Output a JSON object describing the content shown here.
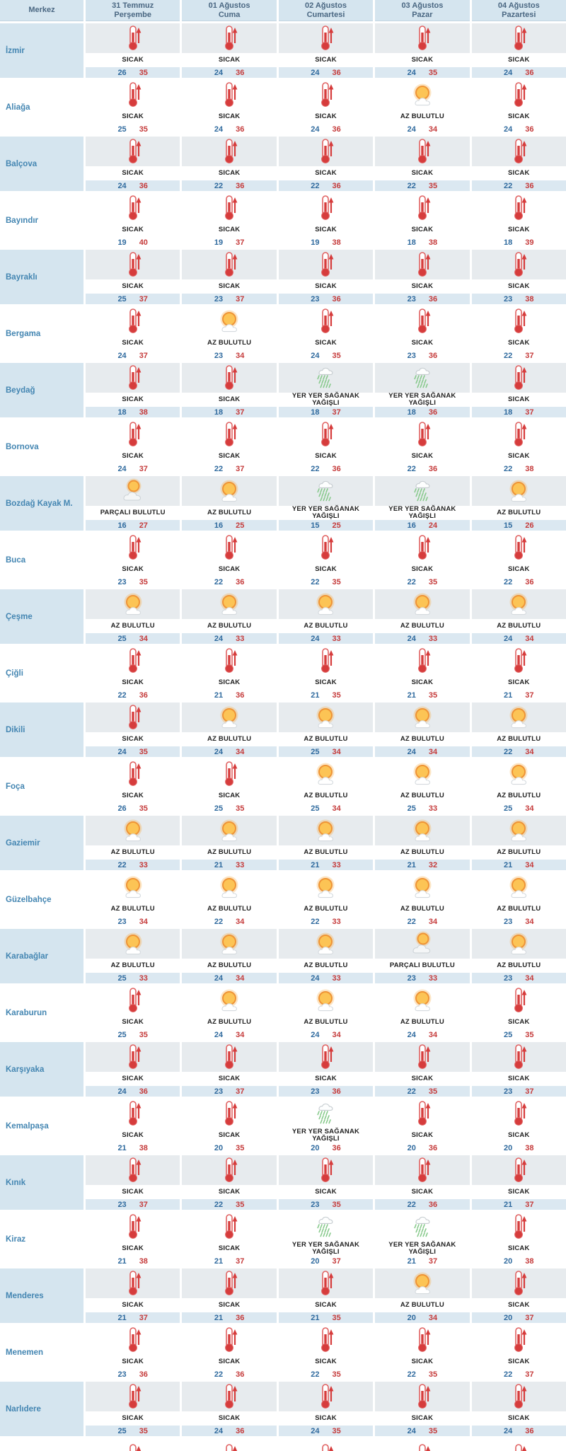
{
  "header": {
    "merkez_label": "Merkez",
    "days": [
      {
        "date": "31 Temmuz",
        "weekday": "Perşembe"
      },
      {
        "date": "01 Ağustos",
        "weekday": "Cuma"
      },
      {
        "date": "02 Ağustos",
        "weekday": "Cumartesi"
      },
      {
        "date": "03 Ağustos",
        "weekday": "Pazar"
      },
      {
        "date": "04 Ağustos",
        "weekday": "Pazartesi"
      }
    ]
  },
  "conditions": {
    "sicak": {
      "label": "SICAK",
      "icon": "thermometer-icon"
    },
    "az": {
      "label": "AZ BULUTLU",
      "icon": "sun-small-cloud-icon"
    },
    "parcali": {
      "label": "PARÇALI BULUTLU",
      "icon": "sun-behind-cloud-icon"
    },
    "saganak": {
      "label": "YER YER SAĞANAK YAĞIŞLI",
      "icon": "rain-shower-icon"
    }
  },
  "colors": {
    "header_bg": "#d5e5ef",
    "header_text": "#4a6782",
    "district_text": "#4486b2",
    "row_tint": "#dbe8f1",
    "icon_band_tint": "#e7ebee",
    "min_temp": "#2f6a9e",
    "max_temp": "#c53b3b"
  },
  "rows": [
    {
      "name": "İzmir",
      "days": [
        {
          "c": "sicak",
          "min": 26,
          "max": 35
        },
        {
          "c": "sicak",
          "min": 24,
          "max": 36
        },
        {
          "c": "sicak",
          "min": 24,
          "max": 36
        },
        {
          "c": "sicak",
          "min": 24,
          "max": 35
        },
        {
          "c": "sicak",
          "min": 24,
          "max": 36
        }
      ]
    },
    {
      "name": "Aliağa",
      "days": [
        {
          "c": "sicak",
          "min": 25,
          "max": 35
        },
        {
          "c": "sicak",
          "min": 24,
          "max": 36
        },
        {
          "c": "sicak",
          "min": 24,
          "max": 36
        },
        {
          "c": "az",
          "min": 24,
          "max": 34
        },
        {
          "c": "sicak",
          "min": 24,
          "max": 36
        }
      ]
    },
    {
      "name": "Balçova",
      "days": [
        {
          "c": "sicak",
          "min": 24,
          "max": 36
        },
        {
          "c": "sicak",
          "min": 22,
          "max": 36
        },
        {
          "c": "sicak",
          "min": 22,
          "max": 36
        },
        {
          "c": "sicak",
          "min": 22,
          "max": 35
        },
        {
          "c": "sicak",
          "min": 22,
          "max": 36
        }
      ]
    },
    {
      "name": "Bayındır",
      "days": [
        {
          "c": "sicak",
          "min": 19,
          "max": 40
        },
        {
          "c": "sicak",
          "min": 19,
          "max": 37
        },
        {
          "c": "sicak",
          "min": 19,
          "max": 38
        },
        {
          "c": "sicak",
          "min": 18,
          "max": 38
        },
        {
          "c": "sicak",
          "min": 18,
          "max": 39
        }
      ]
    },
    {
      "name": "Bayraklı",
      "days": [
        {
          "c": "sicak",
          "min": 25,
          "max": 37
        },
        {
          "c": "sicak",
          "min": 23,
          "max": 37
        },
        {
          "c": "sicak",
          "min": 23,
          "max": 36
        },
        {
          "c": "sicak",
          "min": 23,
          "max": 36
        },
        {
          "c": "sicak",
          "min": 23,
          "max": 38
        }
      ]
    },
    {
      "name": "Bergama",
      "days": [
        {
          "c": "sicak",
          "min": 24,
          "max": 37
        },
        {
          "c": "az",
          "min": 23,
          "max": 34
        },
        {
          "c": "sicak",
          "min": 24,
          "max": 35
        },
        {
          "c": "sicak",
          "min": 23,
          "max": 36
        },
        {
          "c": "sicak",
          "min": 22,
          "max": 37
        }
      ]
    },
    {
      "name": "Beydağ",
      "days": [
        {
          "c": "sicak",
          "min": 18,
          "max": 38
        },
        {
          "c": "sicak",
          "min": 18,
          "max": 37
        },
        {
          "c": "saganak",
          "min": 18,
          "max": 37
        },
        {
          "c": "saganak",
          "min": 18,
          "max": 36
        },
        {
          "c": "sicak",
          "min": 18,
          "max": 37
        }
      ]
    },
    {
      "name": "Bornova",
      "days": [
        {
          "c": "sicak",
          "min": 24,
          "max": 37
        },
        {
          "c": "sicak",
          "min": 22,
          "max": 37
        },
        {
          "c": "sicak",
          "min": 22,
          "max": 36
        },
        {
          "c": "sicak",
          "min": 22,
          "max": 36
        },
        {
          "c": "sicak",
          "min": 22,
          "max": 38
        }
      ]
    },
    {
      "name": "Bozdağ Kayak M.",
      "days": [
        {
          "c": "parcali",
          "min": 16,
          "max": 27
        },
        {
          "c": "az",
          "min": 16,
          "max": 25
        },
        {
          "c": "saganak",
          "min": 15,
          "max": 25
        },
        {
          "c": "saganak",
          "min": 16,
          "max": 24
        },
        {
          "c": "az",
          "min": 15,
          "max": 26
        }
      ]
    },
    {
      "name": "Buca",
      "days": [
        {
          "c": "sicak",
          "min": 23,
          "max": 35
        },
        {
          "c": "sicak",
          "min": 22,
          "max": 36
        },
        {
          "c": "sicak",
          "min": 22,
          "max": 35
        },
        {
          "c": "sicak",
          "min": 22,
          "max": 35
        },
        {
          "c": "sicak",
          "min": 22,
          "max": 36
        }
      ]
    },
    {
      "name": "Çeşme",
      "days": [
        {
          "c": "az",
          "min": 25,
          "max": 34
        },
        {
          "c": "az",
          "min": 24,
          "max": 33
        },
        {
          "c": "az",
          "min": 24,
          "max": 33
        },
        {
          "c": "az",
          "min": 24,
          "max": 33
        },
        {
          "c": "az",
          "min": 24,
          "max": 34
        }
      ]
    },
    {
      "name": "Çiğli",
      "days": [
        {
          "c": "sicak",
          "min": 22,
          "max": 36
        },
        {
          "c": "sicak",
          "min": 21,
          "max": 36
        },
        {
          "c": "sicak",
          "min": 21,
          "max": 35
        },
        {
          "c": "sicak",
          "min": 21,
          "max": 35
        },
        {
          "c": "sicak",
          "min": 21,
          "max": 37
        }
      ]
    },
    {
      "name": "Dikili",
      "days": [
        {
          "c": "sicak",
          "min": 24,
          "max": 35
        },
        {
          "c": "az",
          "min": 24,
          "max": 34
        },
        {
          "c": "az",
          "min": 25,
          "max": 34
        },
        {
          "c": "az",
          "min": 24,
          "max": 34
        },
        {
          "c": "az",
          "min": 22,
          "max": 34
        }
      ]
    },
    {
      "name": "Foça",
      "days": [
        {
          "c": "sicak",
          "min": 26,
          "max": 35
        },
        {
          "c": "sicak",
          "min": 25,
          "max": 35
        },
        {
          "c": "az",
          "min": 25,
          "max": 34
        },
        {
          "c": "az",
          "min": 25,
          "max": 33
        },
        {
          "c": "az",
          "min": 25,
          "max": 34
        }
      ]
    },
    {
      "name": "Gaziemir",
      "days": [
        {
          "c": "az",
          "min": 22,
          "max": 33
        },
        {
          "c": "az",
          "min": 21,
          "max": 33
        },
        {
          "c": "az",
          "min": 21,
          "max": 33
        },
        {
          "c": "az",
          "min": 21,
          "max": 32
        },
        {
          "c": "az",
          "min": 21,
          "max": 34
        }
      ]
    },
    {
      "name": "Güzelbahçe",
      "days": [
        {
          "c": "az",
          "min": 23,
          "max": 34
        },
        {
          "c": "az",
          "min": 22,
          "max": 34
        },
        {
          "c": "az",
          "min": 22,
          "max": 33
        },
        {
          "c": "az",
          "min": 22,
          "max": 34
        },
        {
          "c": "az",
          "min": 23,
          "max": 34
        }
      ]
    },
    {
      "name": "Karabağlar",
      "days": [
        {
          "c": "az",
          "min": 25,
          "max": 33
        },
        {
          "c": "az",
          "min": 24,
          "max": 34
        },
        {
          "c": "az",
          "min": 24,
          "max": 33
        },
        {
          "c": "parcali",
          "min": 23,
          "max": 33
        },
        {
          "c": "az",
          "min": 23,
          "max": 34
        }
      ]
    },
    {
      "name": "Karaburun",
      "days": [
        {
          "c": "sicak",
          "min": 25,
          "max": 35
        },
        {
          "c": "az",
          "min": 24,
          "max": 34
        },
        {
          "c": "az",
          "min": 24,
          "max": 34
        },
        {
          "c": "az",
          "min": 24,
          "max": 34
        },
        {
          "c": "sicak",
          "min": 25,
          "max": 35
        }
      ]
    },
    {
      "name": "Karşıyaka",
      "days": [
        {
          "c": "sicak",
          "min": 24,
          "max": 36
        },
        {
          "c": "sicak",
          "min": 23,
          "max": 37
        },
        {
          "c": "sicak",
          "min": 23,
          "max": 36
        },
        {
          "c": "sicak",
          "min": 22,
          "max": 35
        },
        {
          "c": "sicak",
          "min": 23,
          "max": 37
        }
      ]
    },
    {
      "name": "Kemalpaşa",
      "days": [
        {
          "c": "sicak",
          "min": 21,
          "max": 38
        },
        {
          "c": "sicak",
          "min": 20,
          "max": 35
        },
        {
          "c": "saganak",
          "min": 20,
          "max": 36
        },
        {
          "c": "sicak",
          "min": 20,
          "max": 36
        },
        {
          "c": "sicak",
          "min": 20,
          "max": 38
        }
      ]
    },
    {
      "name": "Kınık",
      "days": [
        {
          "c": "sicak",
          "min": 23,
          "max": 37
        },
        {
          "c": "sicak",
          "min": 22,
          "max": 35
        },
        {
          "c": "sicak",
          "min": 23,
          "max": 35
        },
        {
          "c": "sicak",
          "min": 22,
          "max": 36
        },
        {
          "c": "sicak",
          "min": 21,
          "max": 37
        }
      ]
    },
    {
      "name": "Kiraz",
      "days": [
        {
          "c": "sicak",
          "min": 21,
          "max": 38
        },
        {
          "c": "sicak",
          "min": 21,
          "max": 37
        },
        {
          "c": "saganak",
          "min": 20,
          "max": 37
        },
        {
          "c": "saganak",
          "min": 21,
          "max": 37
        },
        {
          "c": "sicak",
          "min": 20,
          "max": 38
        }
      ]
    },
    {
      "name": "Menderes",
      "days": [
        {
          "c": "sicak",
          "min": 21,
          "max": 37
        },
        {
          "c": "sicak",
          "min": 21,
          "max": 36
        },
        {
          "c": "sicak",
          "min": 21,
          "max": 35
        },
        {
          "c": "az",
          "min": 20,
          "max": 34
        },
        {
          "c": "sicak",
          "min": 20,
          "max": 37
        }
      ]
    },
    {
      "name": "Menemen",
      "days": [
        {
          "c": "sicak",
          "min": 23,
          "max": 36
        },
        {
          "c": "sicak",
          "min": 22,
          "max": 36
        },
        {
          "c": "sicak",
          "min": 22,
          "max": 35
        },
        {
          "c": "sicak",
          "min": 22,
          "max": 35
        },
        {
          "c": "sicak",
          "min": 22,
          "max": 37
        }
      ]
    },
    {
      "name": "Narlıdere",
      "days": [
        {
          "c": "sicak",
          "min": 25,
          "max": 35
        },
        {
          "c": "sicak",
          "min": 24,
          "max": 36
        },
        {
          "c": "sicak",
          "min": 24,
          "max": 35
        },
        {
          "c": "sicak",
          "min": 24,
          "max": 35
        },
        {
          "c": "sicak",
          "min": 24,
          "max": 36
        }
      ]
    }
  ],
  "partial_next_row": {
    "days": [
      "sicak",
      "sicak",
      "sicak",
      "sicak",
      "sicak"
    ]
  }
}
